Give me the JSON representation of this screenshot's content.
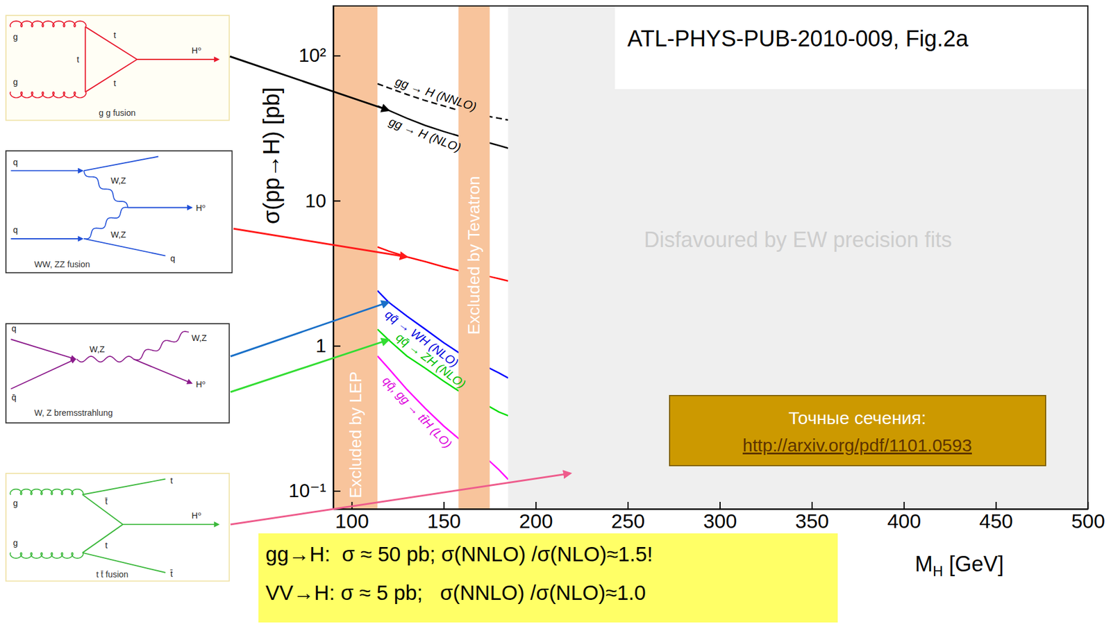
{
  "chart_data": {
    "type": "line",
    "title": "ATL-PHYS-PUB-2010-009, Fig.2a",
    "x_label": {
      "text": "M",
      "subscript": "H",
      "suffix": " [GeV]"
    },
    "y_label": "σ(pp→H) [pb]",
    "log": "y",
    "xlim": [
      90,
      500
    ],
    "xticks": [
      100,
      150,
      200,
      250,
      300,
      350,
      400,
      450,
      500
    ],
    "ylim": [
      0.075,
      220
    ],
    "yticks": [
      {
        "value": 0.1,
        "label": "10⁻¹"
      },
      1,
      10,
      {
        "value": 100,
        "label": "10²"
      }
    ],
    "x": [
      114,
      120,
      130,
      140,
      150,
      158,
      175,
      180,
      185
    ],
    "series": [
      {
        "name": "gg → H (NNLO)",
        "color": "#000000",
        "line_style": "dashed",
        "values": [
          64,
          60,
          54,
          49,
          45,
          42,
          38,
          37,
          36
        ]
      },
      {
        "name": "gg → H (NLO)",
        "color": "#000000",
        "line_style": "solid",
        "values": [
          45,
          42,
          37,
          33,
          30,
          28,
          25,
          24,
          23
        ]
      },
      {
        "color": "#ff0000",
        "line_style": "solid",
        "values": [
          4.8,
          4.5,
          4.1,
          3.8,
          3.5,
          3.3,
          3.0,
          2.9,
          2.8
        ]
      },
      {
        "name": "qq̄ → WH (NLO)",
        "color": "#0000ff",
        "line_style": "solid",
        "values": [
          2.4,
          2.0,
          1.6,
          1.3,
          1.05,
          0.9,
          0.7,
          0.65,
          0.6
        ]
      },
      {
        "name": "qq̄ → ZH (NLO)",
        "color": "#00dd00",
        "line_style": "solid",
        "values": [
          1.3,
          1.1,
          0.85,
          0.7,
          0.57,
          0.49,
          0.38,
          0.35,
          0.33
        ]
      },
      {
        "name": "qq̄, gg → tt̄H (LO)",
        "color": "#ff00ff",
        "line_style": "solid",
        "values": [
          0.85,
          0.7,
          0.5,
          0.37,
          0.28,
          0.23,
          0.16,
          0.14,
          0.12
        ]
      }
    ],
    "regions": [
      {
        "label": "Excluded by LEP",
        "x": [
          90,
          114
        ]
      },
      {
        "label": "Excluded by Tevatron",
        "x": [
          158,
          175
        ]
      },
      {
        "label": "Disfavoured by EW precision fits",
        "x": [
          185,
          500
        ]
      }
    ]
  },
  "diagrams": [
    {
      "caption": "g g fusion",
      "labels": [
        "g",
        "g",
        "t",
        "t",
        "t",
        "H⁰"
      ]
    },
    {
      "caption": "WW, ZZ fusion",
      "labels": [
        "q",
        "q",
        "W,Z",
        "W,Z",
        "H⁰",
        "q"
      ]
    },
    {
      "caption": "W, Z bremsstrahlung",
      "labels": [
        "q",
        "q̄",
        "W,Z",
        "W,Z",
        "H⁰"
      ]
    },
    {
      "caption": "t t̄ fusion",
      "labels": [
        "g",
        "g",
        "t",
        "t̄",
        "H⁰",
        "t",
        "t̄"
      ]
    }
  ],
  "reference_box": {
    "title": "Точные сечения:",
    "link": "http://arxiv.org/pdf/1101.0593"
  },
  "note": [
    "gg→H:  σ ≈ 50 pb; σ(NNLO) /σ(NLO)≈1.5!",
    "VV→H: σ ≈ 5 pb;   σ(NNLO) /σ(NLO)≈1.0"
  ]
}
